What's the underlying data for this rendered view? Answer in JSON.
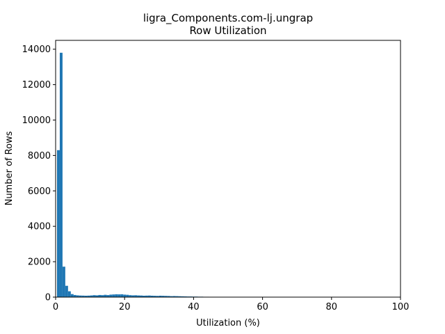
{
  "chart_data": {
    "type": "bar",
    "title_line1": "ligra_Components.com-lj.ungrap",
    "title_line2": "Row Utilization",
    "xlabel": "Utilization (%)",
    "ylabel": "Number of Rows",
    "xlim": [
      0,
      100
    ],
    "ylim": [
      0,
      14500
    ],
    "xticks": [
      0,
      20,
      40,
      60,
      80,
      100
    ],
    "xtick_labels": [
      "0",
      "20",
      "40",
      "60",
      "80",
      "100"
    ],
    "yticks": [
      0,
      2000,
      4000,
      6000,
      8000,
      10000,
      12000,
      14000
    ],
    "ytick_labels": [
      "0",
      "2000",
      "4000",
      "6000",
      "8000",
      "10000",
      "12000",
      "14000"
    ],
    "bar_color": "#1f77b4",
    "bin_width": 0.8,
    "bins_start": [
      0.4,
      1.2,
      2.0,
      2.8,
      3.6,
      4.4,
      5.2,
      6.0,
      6.8,
      7.6,
      8.4,
      9.2,
      10.0,
      10.8,
      11.6,
      12.4,
      13.2,
      14.0,
      14.8,
      15.6,
      16.4,
      17.2,
      18.0,
      18.8,
      19.6,
      20.4,
      21.2,
      22.0,
      22.8,
      23.6,
      24.4,
      25.2,
      26.0,
      26.8,
      27.6,
      28.4,
      29.2,
      30.0,
      30.8,
      31.6,
      32.4,
      33.2,
      34.0,
      34.8,
      35.6,
      36.4,
      37.2,
      38.0,
      38.8,
      39.6,
      40.4,
      41.2,
      42.0,
      42.8,
      43.6,
      44.4,
      45.2,
      46.0,
      46.8,
      47.6
    ],
    "values": [
      8300,
      13800,
      1720,
      640,
      330,
      170,
      120,
      100,
      90,
      85,
      80,
      85,
      95,
      110,
      100,
      120,
      110,
      130,
      115,
      140,
      150,
      160,
      155,
      160,
      140,
      130,
      110,
      100,
      105,
      95,
      90,
      80,
      85,
      90,
      80,
      75,
      70,
      80,
      75,
      70,
      65,
      55,
      60,
      55,
      50,
      45,
      40,
      35,
      35,
      30,
      30,
      25,
      25,
      20,
      20,
      15,
      15,
      10,
      10,
      10
    ]
  }
}
